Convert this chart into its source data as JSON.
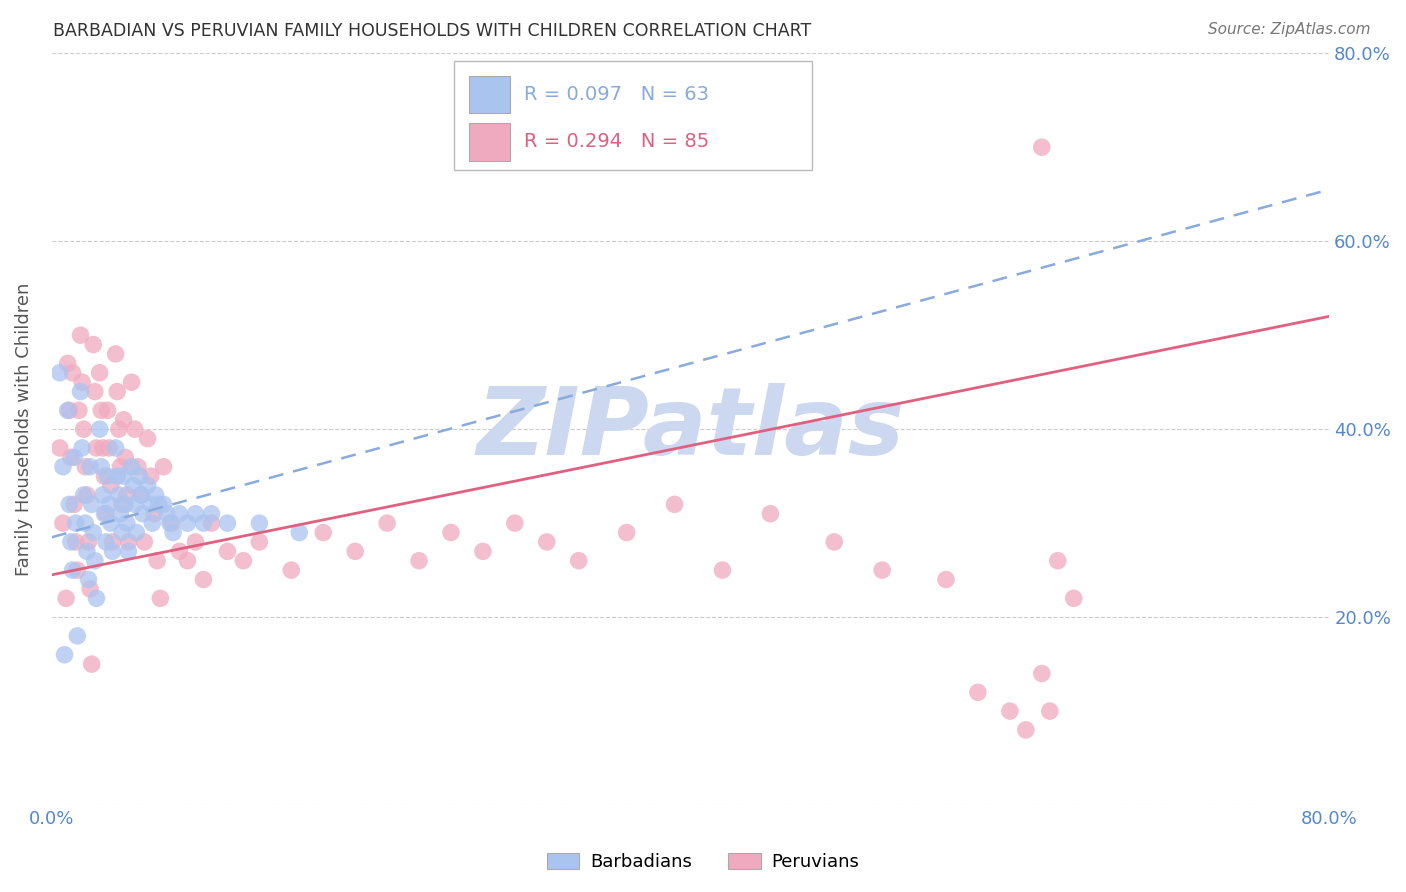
{
  "title": "BARBADIAN VS PERUVIAN FAMILY HOUSEHOLDS WITH CHILDREN CORRELATION CHART",
  "source": "Source: ZipAtlas.com",
  "ylabel": "Family Households with Children",
  "x_min": 0.0,
  "x_max": 0.8,
  "y_min": 0.0,
  "y_max": 0.8,
  "y_ticks": [
    0.0,
    0.2,
    0.4,
    0.6,
    0.8
  ],
  "x_ticks": [
    0.0,
    0.1,
    0.2,
    0.3,
    0.4,
    0.5,
    0.6,
    0.7,
    0.8
  ],
  "grid_color": "#cccccc",
  "background_color": "#ffffff",
  "barbadian_color": "#aac4f0",
  "peruvian_color": "#f0aabf",
  "barbadian_line_color": "#88aadd",
  "peruvian_line_color": "#e06080",
  "watermark": "ZIPatlas",
  "watermark_color": "#ccd8f0",
  "right_axis_color": "#5588cc",
  "barbadian_x": [
    0.005,
    0.007,
    0.008,
    0.01,
    0.011,
    0.012,
    0.013,
    0.014,
    0.015,
    0.016,
    0.018,
    0.019,
    0.02,
    0.021,
    0.022,
    0.023,
    0.024,
    0.025,
    0.026,
    0.027,
    0.028,
    0.03,
    0.031,
    0.032,
    0.033,
    0.034,
    0.035,
    0.036,
    0.037,
    0.038,
    0.04,
    0.041,
    0.042,
    0.043,
    0.044,
    0.045,
    0.046,
    0.047,
    0.048,
    0.05,
    0.051,
    0.052,
    0.053,
    0.055,
    0.056,
    0.057,
    0.06,
    0.062,
    0.063,
    0.065,
    0.067,
    0.07,
    0.072,
    0.074,
    0.076,
    0.08,
    0.085,
    0.09,
    0.095,
    0.1,
    0.11,
    0.13,
    0.155
  ],
  "barbadian_y": [
    0.46,
    0.36,
    0.16,
    0.42,
    0.32,
    0.28,
    0.25,
    0.37,
    0.3,
    0.18,
    0.44,
    0.38,
    0.33,
    0.3,
    0.27,
    0.24,
    0.36,
    0.32,
    0.29,
    0.26,
    0.22,
    0.4,
    0.36,
    0.33,
    0.31,
    0.28,
    0.35,
    0.32,
    0.3,
    0.27,
    0.38,
    0.35,
    0.33,
    0.31,
    0.29,
    0.35,
    0.32,
    0.3,
    0.27,
    0.36,
    0.34,
    0.32,
    0.29,
    0.35,
    0.33,
    0.31,
    0.34,
    0.32,
    0.3,
    0.33,
    0.32,
    0.32,
    0.31,
    0.3,
    0.29,
    0.31,
    0.3,
    0.31,
    0.3,
    0.31,
    0.3,
    0.3,
    0.29
  ],
  "peruvian_x": [
    0.005,
    0.007,
    0.009,
    0.01,
    0.011,
    0.012,
    0.013,
    0.014,
    0.015,
    0.016,
    0.017,
    0.018,
    0.019,
    0.02,
    0.021,
    0.022,
    0.023,
    0.024,
    0.025,
    0.026,
    0.027,
    0.028,
    0.03,
    0.031,
    0.032,
    0.033,
    0.034,
    0.035,
    0.036,
    0.037,
    0.038,
    0.04,
    0.041,
    0.042,
    0.043,
    0.044,
    0.045,
    0.046,
    0.047,
    0.048,
    0.05,
    0.052,
    0.054,
    0.056,
    0.058,
    0.06,
    0.062,
    0.064,
    0.066,
    0.068,
    0.07,
    0.075,
    0.08,
    0.085,
    0.09,
    0.095,
    0.1,
    0.11,
    0.12,
    0.13,
    0.15,
    0.17,
    0.19,
    0.21,
    0.23,
    0.25,
    0.27,
    0.29,
    0.31,
    0.33,
    0.36,
    0.39,
    0.42,
    0.45,
    0.49,
    0.52,
    0.56,
    0.58,
    0.6,
    0.61,
    0.62,
    0.63,
    0.64,
    0.62,
    0.625
  ],
  "peruvian_y": [
    0.38,
    0.3,
    0.22,
    0.47,
    0.42,
    0.37,
    0.46,
    0.32,
    0.28,
    0.25,
    0.42,
    0.5,
    0.45,
    0.4,
    0.36,
    0.33,
    0.28,
    0.23,
    0.15,
    0.49,
    0.44,
    0.38,
    0.46,
    0.42,
    0.38,
    0.35,
    0.31,
    0.42,
    0.38,
    0.34,
    0.28,
    0.48,
    0.44,
    0.4,
    0.36,
    0.32,
    0.41,
    0.37,
    0.33,
    0.28,
    0.45,
    0.4,
    0.36,
    0.33,
    0.28,
    0.39,
    0.35,
    0.31,
    0.26,
    0.22,
    0.36,
    0.3,
    0.27,
    0.26,
    0.28,
    0.24,
    0.3,
    0.27,
    0.26,
    0.28,
    0.25,
    0.29,
    0.27,
    0.3,
    0.26,
    0.29,
    0.27,
    0.3,
    0.28,
    0.26,
    0.29,
    0.32,
    0.25,
    0.31,
    0.28,
    0.25,
    0.24,
    0.12,
    0.1,
    0.08,
    0.7,
    0.26,
    0.22,
    0.14,
    0.1
  ],
  "barb_trend_x0": 0.0,
  "barb_trend_x1": 0.8,
  "barb_trend_y0": 0.285,
  "barb_trend_y1": 0.655,
  "peru_trend_x0": 0.0,
  "peru_trend_x1": 0.8,
  "peru_trend_y0": 0.245,
  "peru_trend_y1": 0.52
}
